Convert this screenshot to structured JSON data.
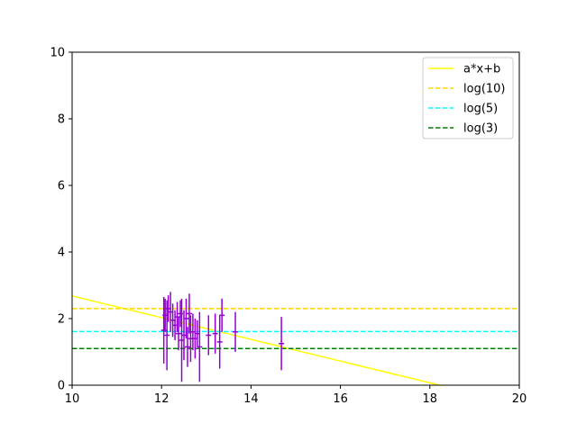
{
  "chart_data": {
    "type": "scatter",
    "title": "",
    "xlabel": "",
    "ylabel": "",
    "xlim": [
      10,
      20
    ],
    "ylim": [
      0,
      10
    ],
    "x_ticks": [
      10,
      12,
      14,
      16,
      18,
      20
    ],
    "y_ticks": [
      0,
      2,
      4,
      6,
      8,
      10
    ],
    "x_tick_labels": [
      "10",
      "12",
      "14",
      "16",
      "18",
      "20"
    ],
    "y_tick_labels": [
      "0",
      "2",
      "4",
      "6",
      "8",
      "10"
    ],
    "grid": false,
    "legend_position": "top-right",
    "lines": [
      {
        "name": "a*x+b",
        "kind": "fit",
        "style": "solid",
        "color": "#ffff00",
        "x": [
          10,
          18.22
        ],
        "y": [
          2.68,
          0
        ]
      },
      {
        "name": "log(10)",
        "kind": "hline",
        "style": "dashed",
        "color": "#ffd700",
        "y": 2.3
      },
      {
        "name": "log(5)",
        "kind": "hline",
        "style": "dashed",
        "color": "#00ffff",
        "y": 1.61
      },
      {
        "name": "log(3)",
        "kind": "hline",
        "style": "dashed",
        "color": "#008000",
        "y": 1.1
      }
    ],
    "errorbar_series": {
      "color": "#9400d3",
      "points": [
        {
          "x": 12.05,
          "y": 1.65,
          "yerr": 1.0
        },
        {
          "x": 12.08,
          "y": 2.1,
          "yerr": 0.5
        },
        {
          "x": 12.12,
          "y": 1.5,
          "yerr": 1.05
        },
        {
          "x": 12.15,
          "y": 2.3,
          "yerr": 0.4
        },
        {
          "x": 12.2,
          "y": 2.2,
          "yerr": 0.6
        },
        {
          "x": 12.25,
          "y": 1.95,
          "yerr": 0.5
        },
        {
          "x": 12.3,
          "y": 1.8,
          "yerr": 0.45
        },
        {
          "x": 12.35,
          "y": 2.05,
          "yerr": 0.45
        },
        {
          "x": 12.38,
          "y": 1.55,
          "yerr": 0.5
        },
        {
          "x": 12.42,
          "y": 2.15,
          "yerr": 0.4
        },
        {
          "x": 12.45,
          "y": 1.35,
          "yerr": 1.25
        },
        {
          "x": 12.5,
          "y": 1.5,
          "yerr": 0.75
        },
        {
          "x": 12.55,
          "y": 2.0,
          "yerr": 0.6
        },
        {
          "x": 12.58,
          "y": 1.15,
          "yerr": 0.6
        },
        {
          "x": 12.62,
          "y": 2.15,
          "yerr": 0.6
        },
        {
          "x": 12.65,
          "y": 1.4,
          "yerr": 0.7
        },
        {
          "x": 12.7,
          "y": 1.6,
          "yerr": 0.55
        },
        {
          "x": 12.75,
          "y": 1.4,
          "yerr": 0.6
        },
        {
          "x": 12.8,
          "y": 1.55,
          "yerr": 0.4
        },
        {
          "x": 12.85,
          "y": 1.15,
          "yerr": 1.05
        },
        {
          "x": 13.05,
          "y": 1.5,
          "yerr": 0.6
        },
        {
          "x": 13.2,
          "y": 1.55,
          "yerr": 0.6
        },
        {
          "x": 13.3,
          "y": 1.3,
          "yerr": 0.8
        },
        {
          "x": 13.35,
          "y": 2.1,
          "yerr": 0.5
        },
        {
          "x": 13.65,
          "y": 1.6,
          "yerr": 0.6
        },
        {
          "x": 14.68,
          "y": 1.25,
          "yerr": 0.8
        }
      ]
    }
  }
}
